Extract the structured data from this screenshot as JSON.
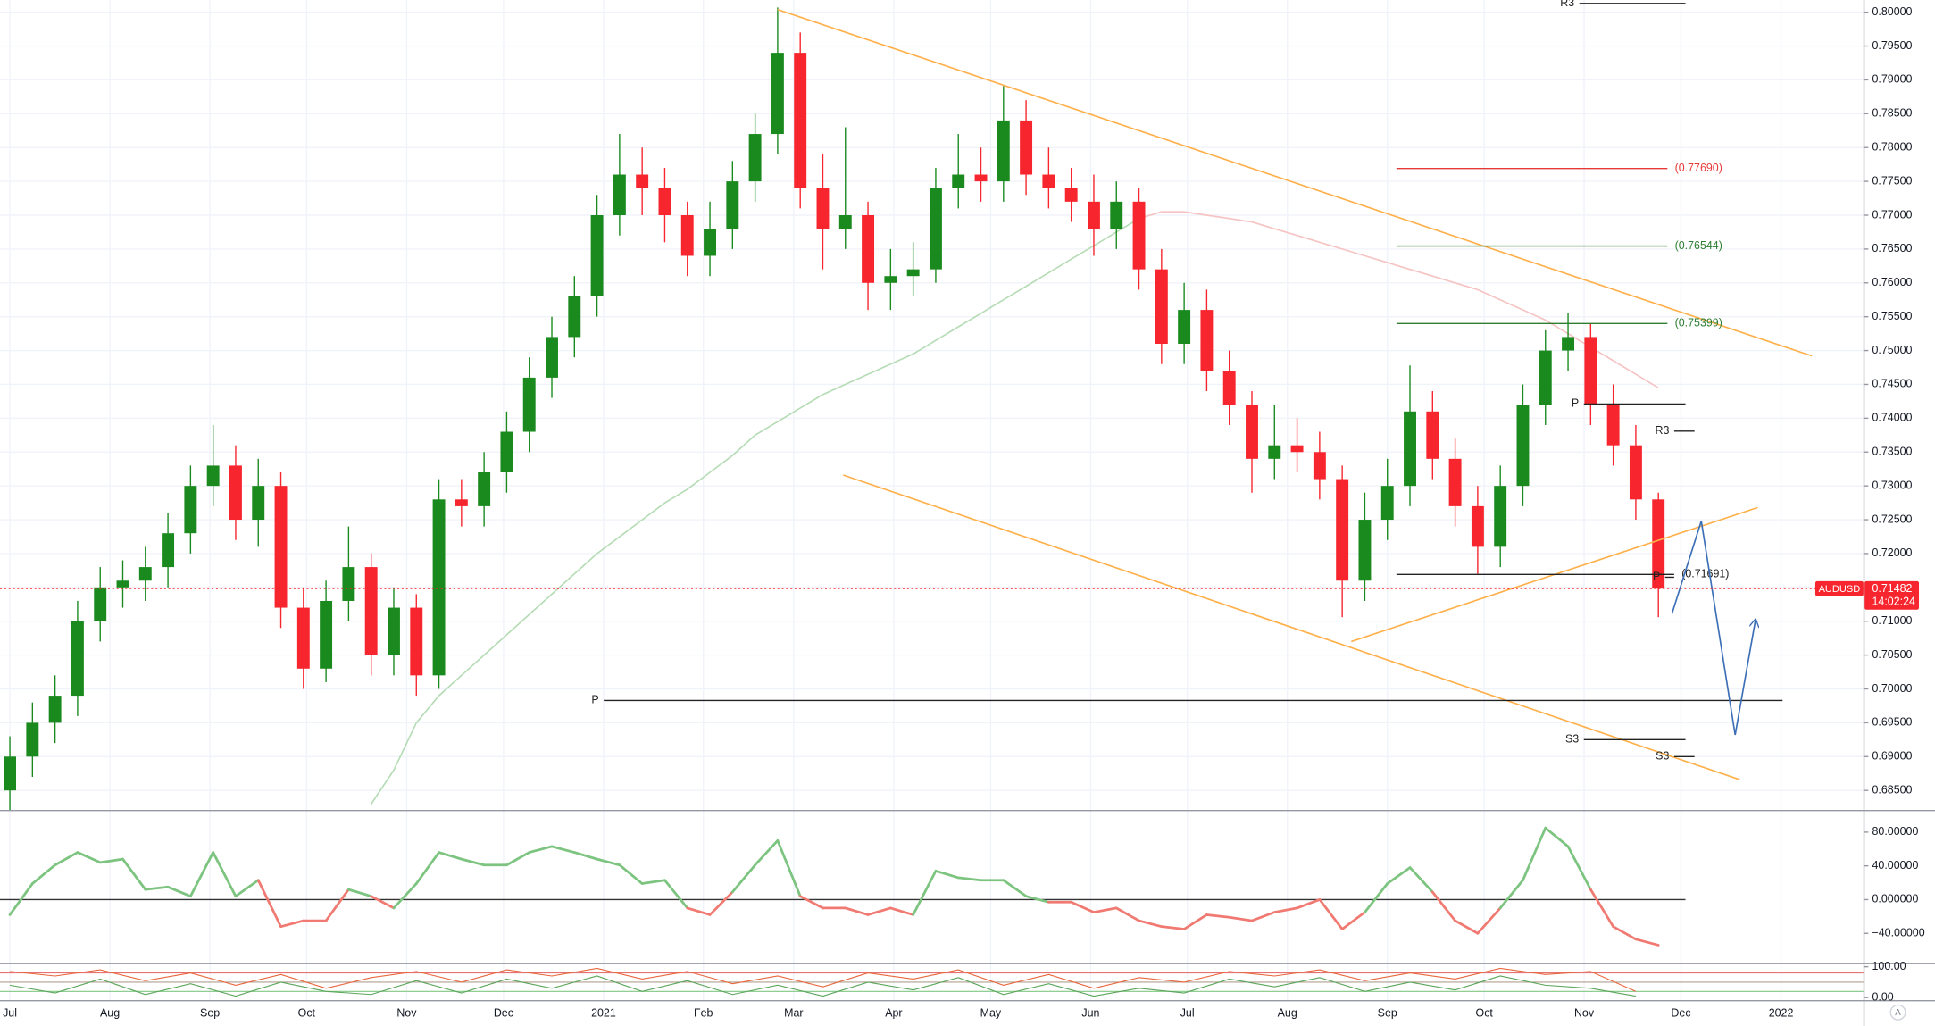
{
  "chart_data": [
    {
      "type": "candlestick",
      "symbol": "AUDUSD",
      "last_price": {
        "value": 0.71482,
        "label": "0.71482"
      },
      "countdown": "14:02:24",
      "up_color": "#1a8a1e",
      "down_color": "#f7252d",
      "grid": true,
      "xlim": [
        -0.437,
        82.08
      ],
      "ylim": [
        0.6823,
        0.8018
      ],
      "xticks": [
        {
          "value": 0,
          "label": "Jul"
        },
        {
          "value": 4.43,
          "label": "Aug"
        },
        {
          "value": 8.86,
          "label": "Sep"
        },
        {
          "value": 13.14,
          "label": "Oct"
        },
        {
          "value": 17.57,
          "label": "Nov"
        },
        {
          "value": 21.86,
          "label": "Dec"
        },
        {
          "value": 26.29,
          "label": "2021"
        },
        {
          "value": 30.71,
          "label": "Feb"
        },
        {
          "value": 34.71,
          "label": "Mar"
        },
        {
          "value": 39.14,
          "label": "Apr"
        },
        {
          "value": 43.43,
          "label": "May"
        },
        {
          "value": 47.86,
          "label": "Jun"
        },
        {
          "value": 52.14,
          "label": "Jul"
        },
        {
          "value": 56.57,
          "label": "Aug"
        },
        {
          "value": 61,
          "label": "Sep"
        },
        {
          "value": 65.29,
          "label": "Oct"
        },
        {
          "value": 69.71,
          "label": "Nov"
        },
        {
          "value": 74,
          "label": "Dec"
        },
        {
          "value": 78.43,
          "label": "2022"
        }
      ],
      "yticks": [
        {
          "value": 0.685,
          "label": "0.68500"
        },
        {
          "value": 0.69,
          "label": "0.69000"
        },
        {
          "value": 0.695,
          "label": "0.69500"
        },
        {
          "value": 0.7,
          "label": "0.70000"
        },
        {
          "value": 0.705,
          "label": "0.70500"
        },
        {
          "value": 0.71,
          "label": "0.71000"
        },
        {
          "value": 0.715,
          "label": "0.71500"
        },
        {
          "value": 0.72,
          "label": "0.72000"
        },
        {
          "value": 0.725,
          "label": "0.72500"
        },
        {
          "value": 0.73,
          "label": "0.73000"
        },
        {
          "value": 0.735,
          "label": "0.73500"
        },
        {
          "value": 0.74,
          "label": "0.74000"
        },
        {
          "value": 0.745,
          "label": "0.74500"
        },
        {
          "value": 0.75,
          "label": "0.75000"
        },
        {
          "value": 0.755,
          "label": "0.75500"
        },
        {
          "value": 0.76,
          "label": "0.76000"
        },
        {
          "value": 0.765,
          "label": "0.76500"
        },
        {
          "value": 0.77,
          "label": "0.77000"
        },
        {
          "value": 0.775,
          "label": "0.77500"
        },
        {
          "value": 0.78,
          "label": "0.78000"
        },
        {
          "value": 0.785,
          "label": "0.78500"
        },
        {
          "value": 0.79,
          "label": "0.79000"
        },
        {
          "value": 0.795,
          "label": "0.79500"
        },
        {
          "value": 0.8,
          "label": "0.80000"
        }
      ],
      "x": [
        0,
        1,
        2,
        3,
        4,
        5,
        6,
        7,
        8,
        9,
        10,
        11,
        12,
        13,
        14,
        15,
        16,
        17,
        18,
        19,
        20,
        21,
        22,
        23,
        24,
        25,
        26,
        27,
        28,
        29,
        30,
        31,
        32,
        33,
        34,
        35,
        36,
        37,
        38,
        39,
        40,
        41,
        42,
        43,
        44,
        45,
        46,
        47,
        48,
        49,
        50,
        51,
        52,
        53,
        54,
        55,
        56,
        57,
        58,
        59,
        60,
        61,
        62,
        63,
        64,
        65,
        66,
        67,
        68,
        69,
        70,
        71,
        72,
        73
      ],
      "open": [
        0.685,
        0.69,
        0.695,
        0.699,
        0.71,
        0.715,
        0.716,
        0.718,
        0.723,
        0.73,
        0.733,
        0.725,
        0.73,
        0.712,
        0.703,
        0.713,
        0.718,
        0.705,
        0.712,
        0.702,
        0.728,
        0.727,
        0.732,
        0.738,
        0.746,
        0.752,
        0.758,
        0.77,
        0.776,
        0.774,
        0.77,
        0.764,
        0.768,
        0.775,
        0.782,
        0.794,
        0.774,
        0.768,
        0.77,
        0.76,
        0.761,
        0.762,
        0.774,
        0.776,
        0.775,
        0.784,
        0.776,
        0.774,
        0.772,
        0.768,
        0.772,
        0.762,
        0.751,
        0.756,
        0.747,
        0.742,
        0.734,
        0.736,
        0.735,
        0.731,
        0.716,
        0.725,
        0.73,
        0.741,
        0.734,
        0.727,
        0.721,
        0.73,
        0.742,
        0.75,
        0.752,
        0.742,
        0.736,
        0.728
      ],
      "high": [
        0.693,
        0.698,
        0.702,
        0.713,
        0.718,
        0.719,
        0.721,
        0.726,
        0.733,
        0.739,
        0.736,
        0.734,
        0.732,
        0.715,
        0.716,
        0.724,
        0.72,
        0.715,
        0.714,
        0.731,
        0.731,
        0.735,
        0.741,
        0.749,
        0.755,
        0.761,
        0.773,
        0.782,
        0.78,
        0.777,
        0.772,
        0.772,
        0.778,
        0.785,
        0.8007,
        0.797,
        0.779,
        0.783,
        0.772,
        0.765,
        0.766,
        0.777,
        0.782,
        0.78,
        0.7891,
        0.787,
        0.78,
        0.777,
        0.776,
        0.775,
        0.774,
        0.765,
        0.76,
        0.759,
        0.75,
        0.744,
        0.742,
        0.74,
        0.738,
        0.733,
        0.729,
        0.734,
        0.7478,
        0.744,
        0.737,
        0.73,
        0.733,
        0.745,
        0.753,
        0.7556,
        0.754,
        0.745,
        0.739,
        0.729
      ],
      "low": [
        0.682,
        0.687,
        0.692,
        0.696,
        0.707,
        0.712,
        0.713,
        0.715,
        0.72,
        0.727,
        0.722,
        0.721,
        0.709,
        0.7,
        0.701,
        0.71,
        0.702,
        0.702,
        0.699,
        0.7,
        0.724,
        0.724,
        0.729,
        0.735,
        0.743,
        0.749,
        0.755,
        0.767,
        0.77,
        0.766,
        0.761,
        0.761,
        0.765,
        0.772,
        0.779,
        0.771,
        0.762,
        0.765,
        0.756,
        0.756,
        0.758,
        0.76,
        0.771,
        0.772,
        0.772,
        0.773,
        0.771,
        0.769,
        0.764,
        0.765,
        0.759,
        0.748,
        0.748,
        0.744,
        0.739,
        0.729,
        0.731,
        0.732,
        0.728,
        0.7106,
        0.713,
        0.722,
        0.727,
        0.731,
        0.724,
        0.717,
        0.718,
        0.727,
        0.739,
        0.747,
        0.739,
        0.733,
        0.725,
        0.7106
      ],
      "close": [
        0.69,
        0.695,
        0.699,
        0.71,
        0.715,
        0.716,
        0.718,
        0.723,
        0.73,
        0.733,
        0.725,
        0.73,
        0.712,
        0.703,
        0.713,
        0.718,
        0.705,
        0.712,
        0.702,
        0.728,
        0.727,
        0.732,
        0.738,
        0.746,
        0.752,
        0.758,
        0.77,
        0.776,
        0.774,
        0.77,
        0.764,
        0.768,
        0.775,
        0.782,
        0.794,
        0.774,
        0.768,
        0.77,
        0.76,
        0.761,
        0.762,
        0.774,
        0.776,
        0.775,
        0.784,
        0.776,
        0.774,
        0.772,
        0.768,
        0.772,
        0.762,
        0.751,
        0.756,
        0.747,
        0.742,
        0.734,
        0.736,
        0.735,
        0.731,
        0.716,
        0.725,
        0.73,
        0.741,
        0.734,
        0.727,
        0.721,
        0.73,
        0.742,
        0.75,
        0.752,
        0.742,
        0.736,
        0.728,
        0.71482
      ],
      "overlays": [
        {
          "color": "#b5dcb5",
          "values": [
            null,
            null,
            null,
            null,
            null,
            null,
            null,
            null,
            null,
            null,
            null,
            null,
            null,
            null,
            null,
            null,
            0.683,
            0.688,
            0.695,
            0.699,
            0.702,
            0.705,
            0.708,
            0.711,
            0.714,
            0.717,
            0.72,
            0.7225,
            0.725,
            0.7275,
            0.7295,
            0.732,
            0.7345,
            0.7375,
            0.7395,
            0.7415,
            0.7435,
            0.745,
            0.7465,
            0.748,
            0.7495,
            0.7515,
            0.7535,
            0.7555,
            0.7575,
            0.7595,
            0.7615,
            0.7635,
            0.7655,
            0.7675,
            0.7695,
            null,
            null,
            null,
            null,
            null,
            null,
            null,
            null,
            null,
            null,
            null,
            null,
            null,
            null,
            null,
            null,
            null,
            null,
            null,
            null,
            null,
            null,
            null
          ]
        },
        {
          "color": "#f6c3c3",
          "values": [
            null,
            null,
            null,
            null,
            null,
            null,
            null,
            null,
            null,
            null,
            null,
            null,
            null,
            null,
            null,
            null,
            null,
            null,
            null,
            null,
            null,
            null,
            null,
            null,
            null,
            null,
            null,
            null,
            null,
            null,
            null,
            null,
            null,
            null,
            null,
            null,
            null,
            null,
            null,
            null,
            null,
            null,
            null,
            null,
            null,
            null,
            null,
            null,
            null,
            null,
            0.7695,
            0.7705,
            0.7705,
            0.77,
            0.7695,
            0.769,
            0.768,
            0.767,
            0.766,
            0.765,
            0.764,
            0.763,
            0.762,
            0.761,
            0.76,
            0.759,
            0.7575,
            0.756,
            0.7545,
            0.7525,
            0.7505,
            0.7485,
            0.7465,
            0.7445
          ]
        }
      ],
      "trend_lines": [
        {
          "color": "#ffb04a",
          "x": [
            33.99,
            79.8
          ],
          "y": [
            0.8004,
            0.7492
          ]
        },
        {
          "color": "#ffb04a",
          "x": [
            36.9,
            76.6
          ],
          "y": [
            0.7316,
            0.6866
          ]
        },
        {
          "color": "#ffb04a",
          "x": [
            59.4,
            77.4
          ],
          "y": [
            0.707,
            0.7268
          ]
        }
      ],
      "levels": [
        {
          "label": "R3",
          "value": 0.8013,
          "x": [
            69.5,
            74.2
          ],
          "color": "#222222",
          "side": "left"
        },
        {
          "label": "(0.77690)",
          "value": 0.7769,
          "x": [
            61.4,
            73.4
          ],
          "color": "#e53935",
          "side": "right"
        },
        {
          "label": "(0.76544)",
          "value": 0.76544,
          "x": [
            61.4,
            73.4
          ],
          "color": "#2e7d32",
          "side": "right"
        },
        {
          "label": "(0.75399)",
          "value": 0.75399,
          "x": [
            61.4,
            73.4
          ],
          "color": "#2e7d32",
          "side": "right"
        },
        {
          "label": "P",
          "value": 0.7421,
          "x": [
            69.7,
            74.2
          ],
          "color": "#222222",
          "side": "left"
        },
        {
          "label": "R3",
          "value": 0.7381,
          "x": [
            73.7,
            74.6
          ],
          "color": "#222222",
          "side": "left"
        },
        {
          "label": "(0.71691)",
          "value": 0.71691,
          "x": [
            61.4,
            73.7
          ],
          "color": "#222222",
          "side": "right"
        },
        {
          "label": "P",
          "value": 0.7165,
          "x": [
            73.3,
            73.7
          ],
          "color": "#222222",
          "side": "left"
        },
        {
          "label": "P",
          "value": 0.6983,
          "x": [
            26.3,
            78.5
          ],
          "color": "#222222",
          "side": "left"
        },
        {
          "label": "S3",
          "value": 0.6925,
          "x": [
            69.7,
            74.2
          ],
          "color": "#222222",
          "side": "left"
        },
        {
          "label": "S3",
          "value": 0.69,
          "x": [
            73.7,
            74.6
          ],
          "color": "#222222",
          "side": "left"
        }
      ],
      "projection": {
        "color": "#3d6fb6",
        "x": [
          73.6,
          74.9,
          76.4,
          77.3
        ],
        "y": [
          0.7111,
          0.7248,
          0.6932,
          0.7102
        ]
      }
    },
    {
      "type": "oscillator",
      "pos_color": "#7cc47f",
      "neg_color": "#f07a72",
      "zero_line": 0,
      "ylim": [
        -75.2,
        103.4
      ],
      "yticks": [
        {
          "value": -40,
          "label": "−40.00000"
        },
        {
          "value": 0,
          "label": "0.000000"
        },
        {
          "value": 40,
          "label": "40.00000"
        },
        {
          "value": 80,
          "label": "80.00000"
        }
      ],
      "x": [
        0,
        1,
        2,
        3,
        4,
        5,
        6,
        7,
        8,
        9,
        10,
        11,
        12,
        13,
        14,
        15,
        16,
        17,
        18,
        19,
        20,
        21,
        22,
        23,
        24,
        25,
        26,
        27,
        28,
        29,
        30,
        31,
        32,
        33,
        34,
        35,
        36,
        37,
        38,
        39,
        40,
        41,
        42,
        43,
        44,
        45,
        46,
        47,
        48,
        49,
        50,
        51,
        52,
        53,
        54,
        55,
        56,
        57,
        58,
        59,
        60,
        61,
        62,
        63,
        64,
        65,
        66,
        67,
        68,
        69,
        70,
        71,
        72,
        73
      ],
      "values": [
        -18,
        19,
        41,
        56,
        44,
        48,
        12,
        15,
        4,
        56,
        4,
        23,
        -32,
        -25,
        -25,
        12,
        4,
        -10,
        19,
        56,
        48,
        41,
        41,
        56,
        63,
        56,
        48,
        41,
        19,
        23,
        -10,
        -18,
        9,
        41,
        70,
        4,
        -10,
        -10,
        -18,
        -10,
        -18,
        34,
        26,
        23,
        23,
        4,
        -3,
        -3,
        -15,
        -10,
        -25,
        -32,
        -35,
        -18,
        -21,
        -25,
        -15,
        -10,
        0,
        -35,
        -15,
        19,
        38,
        9,
        -25,
        -40,
        -10,
        23,
        85,
        63,
        12,
        -32,
        -47,
        -54
      ]
    },
    {
      "type": "stochastic",
      "ylim": [
        -8,
        108
      ],
      "yticks": [
        {
          "value": 0,
          "label": "0.00"
        },
        {
          "value": 100,
          "label": "100.00"
        }
      ],
      "bands": [
        {
          "value": 80,
          "color": "#e57373"
        },
        {
          "value": 50,
          "color": "#b0a090"
        },
        {
          "value": 20,
          "color": "#81c784"
        }
      ],
      "x": [
        0,
        2,
        4,
        6,
        8,
        10,
        12,
        14,
        16,
        18,
        20,
        22,
        24,
        26,
        28,
        30,
        32,
        34,
        36,
        38,
        40,
        42,
        44,
        46,
        48,
        50,
        52,
        54,
        56,
        58,
        60,
        62,
        64,
        66,
        68,
        70,
        72
      ],
      "series": [
        {
          "color": "#e8663d",
          "values": [
            85,
            70,
            90,
            55,
            80,
            40,
            75,
            30,
            65,
            85,
            50,
            90,
            70,
            95,
            60,
            85,
            45,
            70,
            35,
            80,
            60,
            90,
            40,
            75,
            30,
            65,
            50,
            85,
            70,
            90,
            55,
            80,
            60,
            95,
            75,
            85,
            20
          ]
        },
        {
          "color": "#5aa55a",
          "values": [
            40,
            15,
            60,
            10,
            45,
            5,
            50,
            20,
            10,
            55,
            15,
            60,
            30,
            70,
            20,
            55,
            10,
            40,
            5,
            50,
            25,
            65,
            10,
            45,
            5,
            30,
            15,
            60,
            35,
            65,
            20,
            50,
            25,
            70,
            40,
            30,
            5
          ]
        }
      ]
    }
  ],
  "auto_button": "A"
}
